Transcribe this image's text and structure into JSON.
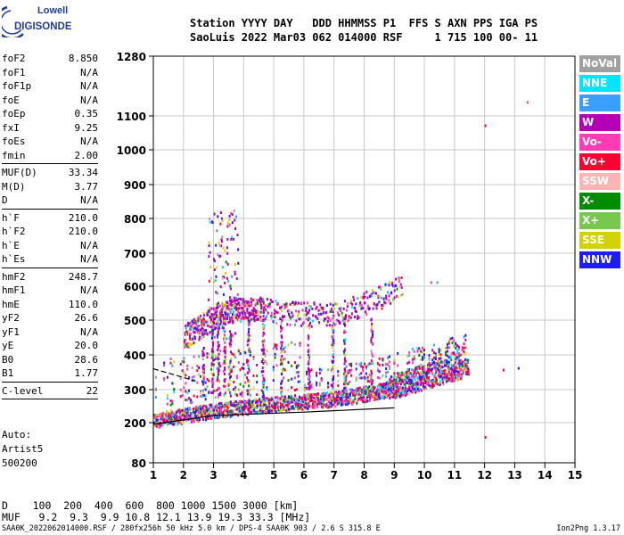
{
  "logo": {
    "line1": "Lowell",
    "line2": "DIGISONDE"
  },
  "header": {
    "line1": "Station YYYY DAY   DDD HHMMSS P1  FFS S AXN PPS IGA PS",
    "line2": "SaoLuis 2022 Mar03 062 014000 RSF     1 715 100 00- 11"
  },
  "params": {
    "group1": [
      {
        "k": "foF2",
        "v": "8.850"
      },
      {
        "k": "foF1",
        "v": "N/A"
      },
      {
        "k": "foF1p",
        "v": "N/A"
      },
      {
        "k": "foE",
        "v": "N/A"
      },
      {
        "k": "foEp",
        "v": "0.35"
      },
      {
        "k": "fxI",
        "v": "9.25"
      },
      {
        "k": "foEs",
        "v": "N/A"
      },
      {
        "k": "fmin",
        "v": "2.00"
      }
    ],
    "group2": [
      {
        "k": "MUF(D)",
        "v": "33.34"
      },
      {
        "k": "M(D)",
        "v": "3.77"
      },
      {
        "k": "D",
        "v": "N/A"
      }
    ],
    "group3": [
      {
        "k": "h`F",
        "v": "210.0"
      },
      {
        "k": "h`F2",
        "v": "210.0"
      },
      {
        "k": "h`E",
        "v": "N/A"
      },
      {
        "k": "h`Es",
        "v": "N/A"
      }
    ],
    "group4": [
      {
        "k": "hmF2",
        "v": "248.7"
      },
      {
        "k": "hmF1",
        "v": "N/A"
      },
      {
        "k": "hmE",
        "v": "110.0"
      },
      {
        "k": "yF2",
        "v": "26.6"
      },
      {
        "k": "yF1",
        "v": "N/A"
      },
      {
        "k": "yE",
        "v": "20.0"
      },
      {
        "k": "B0",
        "v": "28.6"
      },
      {
        "k": "B1",
        "v": "1.77"
      }
    ],
    "clevel": {
      "k": "C-level",
      "v": "22"
    }
  },
  "auto": {
    "line1": "Auto:",
    "line2": "Artist5",
    "line3": "500200"
  },
  "legend": [
    {
      "label": "NoVal",
      "color": "#a0a0a0"
    },
    {
      "label": "NNE",
      "color": "#00e5ff"
    },
    {
      "label": "E",
      "color": "#3aa0ff"
    },
    {
      "label": "W",
      "color": "#b400b4"
    },
    {
      "label": "Vo-",
      "color": "#ff3cb4"
    },
    {
      "label": "Vo+",
      "color": "#ff0032"
    },
    {
      "label": "SSW",
      "color": "#ffb4b4"
    },
    {
      "label": "X-",
      "color": "#008c00"
    },
    {
      "label": "X+",
      "color": "#78c850"
    },
    {
      "label": "SSE",
      "color": "#d2d200"
    },
    {
      "label": "NNW",
      "color": "#1e1ef0"
    }
  ],
  "chart_data": {
    "type": "scatter",
    "xlim": [
      1,
      15
    ],
    "ylim": [
      80,
      1280
    ],
    "y_scale": "nonlinear",
    "x_ticks": [
      "1",
      "2",
      "3",
      "4",
      "5",
      "6",
      "7",
      "8",
      "9",
      "10",
      "11",
      "12",
      "13",
      "14",
      "15"
    ],
    "y_ticks": [
      {
        "v": 80,
        "label": "80"
      },
      {
        "v": 200,
        "label": "200"
      },
      {
        "v": 300,
        "label": "300"
      },
      {
        "v": 400,
        "label": "400"
      },
      {
        "v": 500,
        "label": "500"
      },
      {
        "v": 600,
        "label": "600"
      },
      {
        "v": 700,
        "label": "700"
      },
      {
        "v": 800,
        "label": "800"
      },
      {
        "v": 900,
        "label": "900"
      },
      {
        "v": 1000,
        "label": "1000"
      },
      {
        "v": 1100,
        "label": "1100"
      },
      {
        "v": 1280,
        "label": "1280"
      }
    ],
    "grid": true,
    "series": [
      {
        "name": "F2 trace",
        "points": [
          [
            1.0,
            205
          ],
          [
            2.0,
            220
          ],
          [
            3.0,
            235
          ],
          [
            4.0,
            245
          ],
          [
            5.0,
            255
          ],
          [
            6.0,
            262
          ],
          [
            7.0,
            270
          ],
          [
            8.0,
            285
          ],
          [
            8.8,
            300
          ],
          [
            9.5,
            320
          ],
          [
            10.5,
            345
          ],
          [
            11.3,
            365
          ]
        ]
      },
      {
        "name": "multiple-hop echoes",
        "points": [
          [
            2.0,
            455
          ],
          [
            2.8,
            500
          ],
          [
            3.5,
            530
          ],
          [
            4.5,
            535
          ],
          [
            6.0,
            520
          ],
          [
            7.0,
            520
          ],
          [
            8.5,
            570
          ],
          [
            9.2,
            600
          ]
        ]
      }
    ],
    "profile_lines": [
      {
        "name": "profile-lower",
        "points": [
          [
            1.0,
            195
          ],
          [
            3.0,
            222
          ],
          [
            6.0,
            232
          ],
          [
            9.0,
            245
          ]
        ]
      },
      {
        "name": "profile-upper",
        "points": [
          [
            1.0,
            360
          ],
          [
            1.6,
            345
          ],
          [
            2.4,
            325
          ]
        ]
      }
    ]
  },
  "bottom": {
    "line1": "D    100  200  400  600  800 1000 1500 3000 [km]",
    "line2": "MUF   9.2  9.3  9.9 10.8 12.1 13.9 19.3 33.3 [MHz]"
  },
  "footer": "SAA0K_2022062014000.RSF / 280fx256h 50 kHz 5.0 km / DPS-4 SAA0K 903 / 2.6 S 315.8 E",
  "version": "Ion2Png 1.3.17"
}
